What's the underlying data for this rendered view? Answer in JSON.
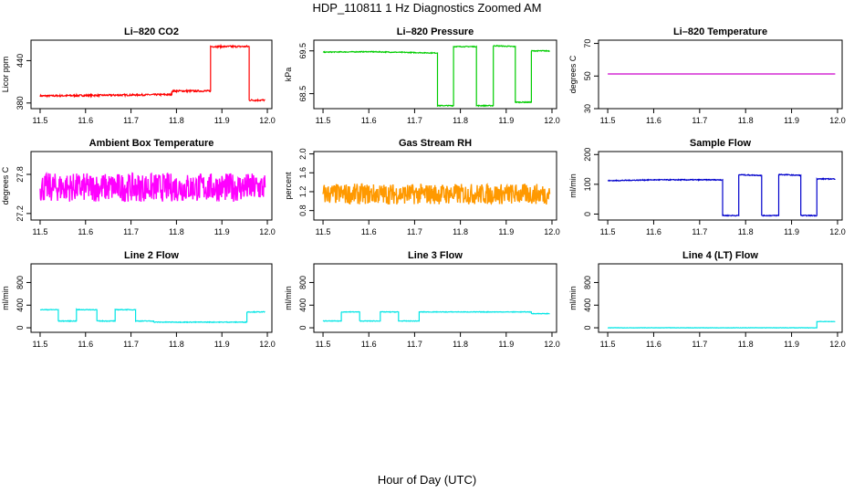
{
  "figure": {
    "title": "HDP_110811  1 Hz Diagnostics Zoomed AM",
    "xlabel": "Hour of Day (UTC)"
  },
  "chart_data": [
    {
      "type": "line",
      "title": "Li–820 CO2",
      "ylabel": "Licor ppm",
      "color": "#ff0000",
      "noise": 1.2,
      "xlim": [
        11.48,
        12.01
      ],
      "ylim": [
        372,
        469
      ],
      "xticks": [
        "11.5",
        "11.6",
        "11.7",
        "11.8",
        "11.9",
        "12.0"
      ],
      "yticks": [
        "380",
        "440"
      ],
      "x": [
        11.5,
        11.79,
        11.79,
        11.875,
        11.875,
        11.96,
        11.96,
        11.995
      ],
      "y": [
        390,
        392,
        397,
        397,
        460,
        460,
        384,
        384
      ]
    },
    {
      "type": "line",
      "title": "Li–820 Pressure",
      "ylabel": "kPa",
      "color": "#00cc00",
      "noise": 0.01,
      "xlim": [
        11.48,
        12.01
      ],
      "ylim": [
        68.15,
        69.75
      ],
      "xticks": [
        "11.5",
        "11.6",
        "11.7",
        "11.8",
        "11.9",
        "12.0"
      ],
      "yticks": [
        "68.5",
        "69.5"
      ],
      "x": [
        11.5,
        11.6,
        11.7,
        11.75,
        11.75,
        11.785,
        11.785,
        11.835,
        11.835,
        11.872,
        11.872,
        11.92,
        11.92,
        11.955,
        11.955,
        11.995
      ],
      "y": [
        69.47,
        69.48,
        69.46,
        69.45,
        68.22,
        68.22,
        69.6,
        69.6,
        68.22,
        68.22,
        69.62,
        69.6,
        68.3,
        68.3,
        69.5,
        69.5
      ]
    },
    {
      "type": "line",
      "title": "Li–820 Temperature",
      "ylabel": "degrees C",
      "color": "#cc00cc",
      "noise": 0,
      "xlim": [
        11.48,
        12.01
      ],
      "ylim": [
        30,
        72
      ],
      "xticks": [
        "11.5",
        "11.6",
        "11.7",
        "11.8",
        "11.9",
        "12.0"
      ],
      "yticks": [
        "30",
        "50",
        "70"
      ],
      "x": [
        11.5,
        11.995
      ],
      "y": [
        51.3,
        51.3
      ]
    },
    {
      "type": "line",
      "title": "Ambient Box Temperature",
      "ylabel": "degrees C",
      "color": "#ff00ff",
      "noise": 0.22,
      "xlim": [
        11.48,
        12.01
      ],
      "ylim": [
        27.1,
        28.15
      ],
      "xticks": [
        "11.5",
        "11.6",
        "11.7",
        "11.8",
        "11.9",
        "12.0"
      ],
      "yticks": [
        "27.2",
        "27.8"
      ],
      "x": [
        11.5,
        11.995
      ],
      "y": [
        27.6,
        27.6
      ]
    },
    {
      "type": "line",
      "title": "Gas Stream RH",
      "ylabel": "percent",
      "color": "#ff9900",
      "noise": 0.22,
      "xlim": [
        11.48,
        12.01
      ],
      "ylim": [
        0.6,
        2.05
      ],
      "xticks": [
        "11.5",
        "11.6",
        "11.7",
        "11.8",
        "11.9",
        "12.0"
      ],
      "yticks": [
        "0.8",
        "1.2",
        "1.6",
        "2.0"
      ],
      "x": [
        11.5,
        11.995
      ],
      "y": [
        1.15,
        1.15
      ]
    },
    {
      "type": "line",
      "title": "Sample Flow",
      "ylabel": "ml/min",
      "color": "#0000cc",
      "noise": 1.5,
      "xlim": [
        11.48,
        12.01
      ],
      "ylim": [
        -20,
        210
      ],
      "xticks": [
        "11.5",
        "11.6",
        "11.7",
        "11.8",
        "11.9",
        "12.0"
      ],
      "yticks": [
        "0",
        "100",
        "200"
      ],
      "x": [
        11.5,
        11.6,
        11.7,
        11.75,
        11.75,
        11.785,
        11.785,
        11.835,
        11.835,
        11.872,
        11.872,
        11.92,
        11.92,
        11.955,
        11.955,
        11.995
      ],
      "y": [
        112,
        115,
        115,
        115,
        -5,
        -5,
        132,
        130,
        -5,
        -5,
        133,
        130,
        -5,
        -5,
        118,
        118
      ]
    },
    {
      "type": "line",
      "title": "Line 2 Flow",
      "ylabel": "ml/min",
      "color": "#00e5e5",
      "noise": 6,
      "xlim": [
        11.48,
        12.01
      ],
      "ylim": [
        -80,
        1130
      ],
      "xticks": [
        "11.5",
        "11.6",
        "11.7",
        "11.8",
        "11.9",
        "12.0"
      ],
      "yticks": [
        "0",
        "400",
        "800"
      ],
      "x": [
        11.5,
        11.54,
        11.54,
        11.58,
        11.58,
        11.625,
        11.625,
        11.665,
        11.665,
        11.71,
        11.71,
        11.75,
        11.75,
        11.955,
        11.955,
        11.995
      ],
      "y": [
        320,
        320,
        120,
        120,
        320,
        320,
        120,
        120,
        320,
        320,
        120,
        120,
        100,
        100,
        280,
        280
      ]
    },
    {
      "type": "line",
      "title": "Line 3 Flow",
      "ylabel": "ml/min",
      "color": "#00e5e5",
      "noise": 5,
      "xlim": [
        11.48,
        12.01
      ],
      "ylim": [
        -80,
        1130
      ],
      "xticks": [
        "11.5",
        "11.6",
        "11.7",
        "11.8",
        "11.9",
        "12.0"
      ],
      "yticks": [
        "0",
        "400",
        "800"
      ],
      "x": [
        11.5,
        11.54,
        11.54,
        11.58,
        11.58,
        11.625,
        11.625,
        11.665,
        11.665,
        11.71,
        11.71,
        11.955,
        11.955,
        11.995
      ],
      "y": [
        120,
        120,
        280,
        280,
        120,
        120,
        280,
        280,
        120,
        120,
        280,
        280,
        250,
        250
      ]
    },
    {
      "type": "line",
      "title": "Line 4 (LT) Flow",
      "ylabel": "ml/min",
      "color": "#00e5e5",
      "noise": 3,
      "xlim": [
        11.48,
        12.01
      ],
      "ylim": [
        -80,
        1130
      ],
      "xticks": [
        "11.5",
        "11.6",
        "11.7",
        "11.8",
        "11.9",
        "12.0"
      ],
      "yticks": [
        "0",
        "400",
        "800"
      ],
      "x": [
        11.5,
        11.955,
        11.955,
        11.995
      ],
      "y": [
        0,
        0,
        110,
        110
      ]
    }
  ]
}
